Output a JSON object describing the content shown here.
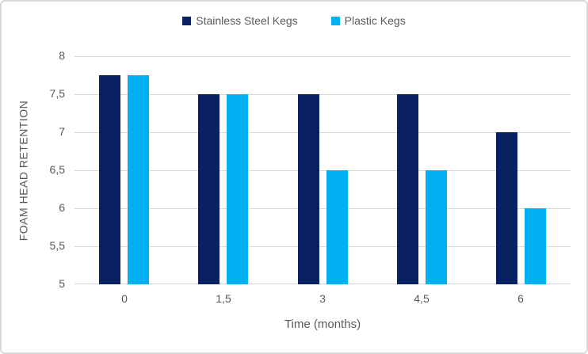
{
  "page": {
    "background": "#ffffff",
    "border_color": "#d9d9d9"
  },
  "chart_data": {
    "type": "bar",
    "categories": [
      "0",
      "1,5",
      "3",
      "4,5",
      "6"
    ],
    "series": [
      {
        "name": "Stainless Steel Kegs",
        "color": "#0a2161",
        "values": [
          7.75,
          7.5,
          7.5,
          7.5,
          7.0
        ]
      },
      {
        "name": "Plastic Kegs",
        "color": "#00b0f0",
        "values": [
          7.75,
          7.5,
          6.5,
          6.5,
          6.0
        ]
      }
    ],
    "xlabel": "Time (months)",
    "ylabel": "FOAM HEAD RETENTION",
    "ylim": [
      5,
      8
    ],
    "ytick_step": 0.5,
    "ytick_labels": [
      "5",
      "5,5",
      "6",
      "6,5",
      "7",
      "7,5",
      "8"
    ],
    "grid": true,
    "gridline_color": "#d9d9d9",
    "axis_text_color": "#595959",
    "legend_position": "top-center"
  }
}
